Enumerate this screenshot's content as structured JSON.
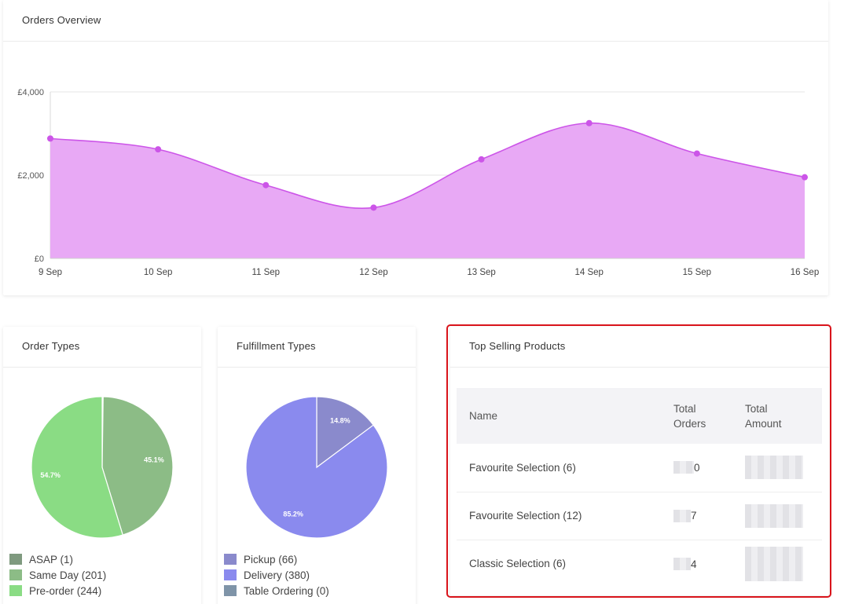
{
  "orders_overview": {
    "title": "Orders Overview",
    "chart_data": {
      "type": "area",
      "x": [
        "9 Sep",
        "10 Sep",
        "11 Sep",
        "12 Sep",
        "13 Sep",
        "14 Sep",
        "15 Sep",
        "16 Sep"
      ],
      "series": [
        {
          "values": [
            2880,
            2620,
            1760,
            1220,
            2380,
            3250,
            2520,
            1950
          ]
        }
      ],
      "ylim": [
        0,
        4000
      ],
      "y_ticks": [
        "£0",
        "£2,000",
        "£4,000"
      ],
      "grid": true,
      "colors": {
        "fill": "#e8a9f5",
        "line": "#cc55e8",
        "point": "#cc55e8"
      }
    }
  },
  "order_types": {
    "title": "Order Types",
    "chart_data": {
      "type": "pie",
      "labels": [
        "ASAP (1)",
        "Same Day (201)",
        "Pre-order (244)"
      ],
      "values": [
        1,
        201,
        244
      ],
      "slice_labels": [
        "",
        "45.1%",
        "54.7%"
      ],
      "colors": [
        "#7f9a7f",
        "#8cbc86",
        "#8adc84"
      ]
    }
  },
  "fulfillment_types": {
    "title": "Fulfillment Types",
    "chart_data": {
      "type": "pie",
      "labels": [
        "Pickup (66)",
        "Delivery (380)",
        "Table Ordering (0)"
      ],
      "values": [
        66,
        380,
        0
      ],
      "slice_labels": [
        "14.8%",
        "85.2%",
        ""
      ],
      "colors": [
        "#8a8acc",
        "#8a8aee",
        "#7f94a8"
      ]
    }
  },
  "top_selling": {
    "title": "Top Selling Products",
    "headers": {
      "name": "Name",
      "total_orders": "Total Orders",
      "total_amount": "Total Amount"
    },
    "rows": [
      {
        "name": "Favourite Selection (6)",
        "orders_visible": "0"
      },
      {
        "name": "Favourite Selection (12)",
        "orders_visible": "7"
      },
      {
        "name": "Classic Selection (6)",
        "orders_visible": "4"
      }
    ]
  }
}
